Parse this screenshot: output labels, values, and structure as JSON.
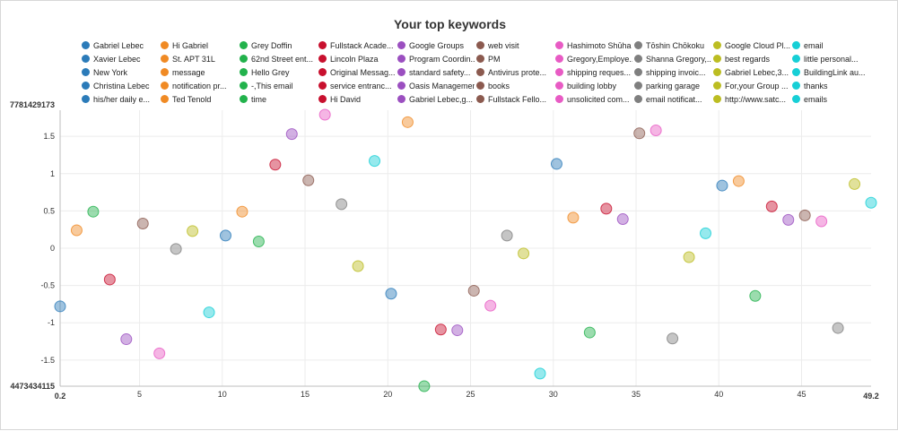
{
  "chart_data": {
    "type": "scatter",
    "title": "Your top keywords",
    "xlabel": "",
    "ylabel": "",
    "xlim": [
      0.2,
      49.2
    ],
    "ylim": [
      -1.85,
      1.85
    ],
    "x_ticks": [
      5,
      10,
      15,
      20,
      25,
      30,
      35,
      40,
      45
    ],
    "y_ticks": [
      1.5,
      1,
      0.5,
      0,
      -0.5,
      -1,
      -1.5
    ],
    "x_min_label": "0.2",
    "x_max_label": "49.2",
    "y_top_label": "7781429173",
    "y_bottom_label": "4473434115",
    "grid": true,
    "legend_position": "top",
    "series": [
      {
        "name": "Gabriel Lebec",
        "color": "#2b7bb9"
      },
      {
        "name": "Xavier Lebec",
        "color": "#2b7bb9"
      },
      {
        "name": "New York",
        "color": "#2b7bb9"
      },
      {
        "name": "Christina Lebec",
        "color": "#2b7bb9"
      },
      {
        "name": "his/her daily e...",
        "color": "#2b7bb9"
      },
      {
        "name": "Hi Gabriel",
        "color": "#f08a24"
      },
      {
        "name": "St. APT 31L",
        "color": "#f08a24"
      },
      {
        "name": "message",
        "color": "#f08a24"
      },
      {
        "name": "notification pr...",
        "color": "#f08a24"
      },
      {
        "name": "Ted Tenold",
        "color": "#f08a24"
      },
      {
        "name": "Grey Doffin",
        "color": "#22b24c"
      },
      {
        "name": "62nd Street ent...",
        "color": "#22b24c"
      },
      {
        "name": "Hello Grey",
        "color": "#22b24c"
      },
      {
        "name": "-,This email",
        "color": "#22b24c"
      },
      {
        "name": "time",
        "color": "#22b24c"
      },
      {
        "name": "Fullstack Acade...",
        "color": "#c8102e"
      },
      {
        "name": "Lincoln Plaza",
        "color": "#c8102e"
      },
      {
        "name": "Original Messag...",
        "color": "#c8102e"
      },
      {
        "name": "service entranc...",
        "color": "#c8102e"
      },
      {
        "name": "Hi David",
        "color": "#c8102e"
      },
      {
        "name": "Google Groups",
        "color": "#9b4fc0"
      },
      {
        "name": "Program Coordin...",
        "color": "#9b4fc0"
      },
      {
        "name": "standard safety...",
        "color": "#9b4fc0"
      },
      {
        "name": "Oasis Managemen...",
        "color": "#9b4fc0"
      },
      {
        "name": "Gabriel Lebec,g...",
        "color": "#9b4fc0"
      },
      {
        "name": "web visit",
        "color": "#8b5a4f"
      },
      {
        "name": "PM",
        "color": "#8b5a4f"
      },
      {
        "name": "Antivirus prote...",
        "color": "#8b5a4f"
      },
      {
        "name": "books",
        "color": "#8b5a4f"
      },
      {
        "name": "Fullstack Fello...",
        "color": "#8b5a4f"
      },
      {
        "name": "Hashimoto Shūha",
        "color": "#e85bc4"
      },
      {
        "name": "Gregory,Employe...",
        "color": "#e85bc4"
      },
      {
        "name": "shipping reques...",
        "color": "#e85bc4"
      },
      {
        "name": "building lobby",
        "color": "#e85bc4"
      },
      {
        "name": "unsolicited com...",
        "color": "#e85bc4"
      },
      {
        "name": "Tōshin Chōkoku",
        "color": "#7f7f7f"
      },
      {
        "name": "Shanna Gregory,...",
        "color": "#7f7f7f"
      },
      {
        "name": "shipping invoic...",
        "color": "#7f7f7f"
      },
      {
        "name": "parking garage",
        "color": "#7f7f7f"
      },
      {
        "name": "email notificat...",
        "color": "#7f7f7f"
      },
      {
        "name": "Google Cloud Pl...",
        "color": "#bcbd22"
      },
      {
        "name": "best regards",
        "color": "#bcbd22"
      },
      {
        "name": "Gabriel Lebec,3...",
        "color": "#bcbd22"
      },
      {
        "name": "For,your Group ...",
        "color": "#bcbd22"
      },
      {
        "name": "http://www.satc...",
        "color": "#bcbd22"
      },
      {
        "name": "email",
        "color": "#17cfd6"
      },
      {
        "name": "little personal...",
        "color": "#17cfd6"
      },
      {
        "name": "BuildingLink au...",
        "color": "#17cfd6"
      },
      {
        "name": "thanks",
        "color": "#17cfd6"
      },
      {
        "name": "emails",
        "color": "#17cfd6"
      }
    ],
    "points": [
      {
        "x": 0.2,
        "y": -0.78,
        "color": "#2b7bb9"
      },
      {
        "x": 1.2,
        "y": 0.24,
        "color": "#f08a24"
      },
      {
        "x": 2.2,
        "y": 0.49,
        "color": "#22b24c"
      },
      {
        "x": 3.2,
        "y": -0.42,
        "color": "#c8102e"
      },
      {
        "x": 4.2,
        "y": -1.22,
        "color": "#9b4fc0"
      },
      {
        "x": 5.2,
        "y": 0.33,
        "color": "#8b5a4f"
      },
      {
        "x": 6.2,
        "y": -1.41,
        "color": "#e85bc4"
      },
      {
        "x": 7.2,
        "y": -0.01,
        "color": "#7f7f7f"
      },
      {
        "x": 8.2,
        "y": 0.23,
        "color": "#bcbd22"
      },
      {
        "x": 9.2,
        "y": -0.86,
        "color": "#17cfd6"
      },
      {
        "x": 10.2,
        "y": 0.17,
        "color": "#2b7bb9"
      },
      {
        "x": 11.2,
        "y": 0.49,
        "color": "#f08a24"
      },
      {
        "x": 12.2,
        "y": 0.09,
        "color": "#22b24c"
      },
      {
        "x": 13.2,
        "y": 1.12,
        "color": "#c8102e"
      },
      {
        "x": 14.2,
        "y": 1.53,
        "color": "#9b4fc0"
      },
      {
        "x": 15.2,
        "y": 0.91,
        "color": "#8b5a4f"
      },
      {
        "x": 16.2,
        "y": 1.79,
        "color": "#e85bc4"
      },
      {
        "x": 17.2,
        "y": 0.59,
        "color": "#7f7f7f"
      },
      {
        "x": 18.2,
        "y": -0.24,
        "color": "#bcbd22"
      },
      {
        "x": 19.2,
        "y": 1.17,
        "color": "#17cfd6"
      },
      {
        "x": 20.2,
        "y": -0.61,
        "color": "#2b7bb9"
      },
      {
        "x": 21.2,
        "y": 1.69,
        "color": "#f08a24"
      },
      {
        "x": 22.2,
        "y": -1.85,
        "color": "#22b24c"
      },
      {
        "x": 23.2,
        "y": -1.09,
        "color": "#c8102e"
      },
      {
        "x": 24.2,
        "y": -1.1,
        "color": "#9b4fc0"
      },
      {
        "x": 25.2,
        "y": -0.57,
        "color": "#8b5a4f"
      },
      {
        "x": 26.2,
        "y": -0.77,
        "color": "#e85bc4"
      },
      {
        "x": 27.2,
        "y": 0.17,
        "color": "#7f7f7f"
      },
      {
        "x": 28.2,
        "y": -0.07,
        "color": "#bcbd22"
      },
      {
        "x": 29.2,
        "y": -1.68,
        "color": "#17cfd6"
      },
      {
        "x": 30.2,
        "y": 1.13,
        "color": "#2b7bb9"
      },
      {
        "x": 31.2,
        "y": 0.41,
        "color": "#f08a24"
      },
      {
        "x": 32.2,
        "y": -1.13,
        "color": "#22b24c"
      },
      {
        "x": 33.2,
        "y": 0.53,
        "color": "#c8102e"
      },
      {
        "x": 34.2,
        "y": 0.39,
        "color": "#9b4fc0"
      },
      {
        "x": 35.2,
        "y": 1.54,
        "color": "#8b5a4f"
      },
      {
        "x": 36.2,
        "y": 1.58,
        "color": "#e85bc4"
      },
      {
        "x": 37.2,
        "y": -1.21,
        "color": "#7f7f7f"
      },
      {
        "x": 38.2,
        "y": -0.12,
        "color": "#bcbd22"
      },
      {
        "x": 39.2,
        "y": 0.2,
        "color": "#17cfd6"
      },
      {
        "x": 40.2,
        "y": 0.84,
        "color": "#2b7bb9"
      },
      {
        "x": 41.2,
        "y": 0.9,
        "color": "#f08a24"
      },
      {
        "x": 42.2,
        "y": -0.64,
        "color": "#22b24c"
      },
      {
        "x": 43.2,
        "y": 0.56,
        "color": "#c8102e"
      },
      {
        "x": 44.2,
        "y": 0.38,
        "color": "#9b4fc0"
      },
      {
        "x": 45.2,
        "y": 0.44,
        "color": "#8b5a4f"
      },
      {
        "x": 46.2,
        "y": 0.36,
        "color": "#e85bc4"
      },
      {
        "x": 47.2,
        "y": -1.07,
        "color": "#7f7f7f"
      },
      {
        "x": 48.2,
        "y": 0.86,
        "color": "#bcbd22"
      },
      {
        "x": 49.2,
        "y": 0.61,
        "color": "#17cfd6"
      }
    ]
  }
}
